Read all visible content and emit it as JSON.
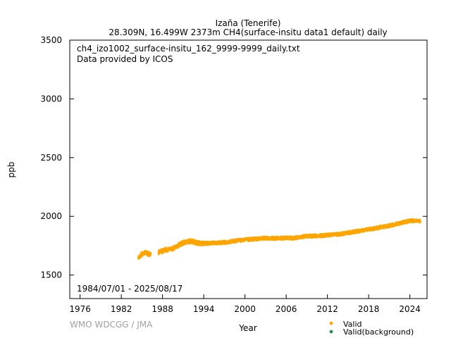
{
  "header": {
    "title": "Izaña (Tenerife)",
    "subtitle": "28.309N, 16.499W 2373m    CH4(surface-insitu data1 default) daily"
  },
  "annotation": {
    "filename": "ch4_izo1002_surface-insitu_162_9999-9999_daily.txt",
    "provider": "Data provided by ICOS",
    "date_range": "1984/07/01 - 2025/08/17"
  },
  "credit": "WMO WDCGG / JMA",
  "colors": {
    "valid": "#ffa500",
    "background": "#2e8b57",
    "axis": "#000000"
  },
  "chart_data": {
    "type": "scatter",
    "title": "Izaña (Tenerife)",
    "xlabel": "Year",
    "ylabel": "ppb",
    "xlim": [
      1974.5,
      2026.5
    ],
    "ylim": [
      1300,
      3500
    ],
    "x_ticks": [
      1976,
      1982,
      1988,
      1994,
      2000,
      2006,
      2012,
      2018,
      2024
    ],
    "y_ticks": [
      1500,
      2000,
      2500,
      3000,
      3500
    ],
    "legend": [
      {
        "name": "Valid",
        "marker": "diamond"
      },
      {
        "name": "Valid(background)",
        "marker": "diamond"
      }
    ],
    "series": [
      {
        "name": "Valid",
        "x": [
          1984.5,
          1985.0,
          1985.5,
          1986.0,
          1987.5,
          1988.0,
          1988.5,
          1989.0,
          1989.5,
          1990.0,
          1990.5,
          1991.0,
          1991.5,
          1992.0,
          1992.5,
          1993.0,
          1993.5,
          1994.0,
          1995.0,
          1996.0,
          1997.0,
          1998.0,
          1999.0,
          2000.0,
          2001.0,
          2002.0,
          2003.0,
          2004.0,
          2005.0,
          2006.0,
          2007.0,
          2008.0,
          2009.0,
          2010.0,
          2011.0,
          2012.0,
          2013.0,
          2014.0,
          2015.0,
          2016.0,
          2017.0,
          2018.0,
          2019.0,
          2020.0,
          2021.0,
          2022.0,
          2023.0,
          2024.0,
          2025.0,
          2025.5
        ],
        "y": [
          1645,
          1680,
          1690,
          1680,
          1695,
          1705,
          1715,
          1720,
          1725,
          1740,
          1760,
          1775,
          1780,
          1790,
          1785,
          1775,
          1770,
          1770,
          1772,
          1775,
          1778,
          1785,
          1795,
          1800,
          1805,
          1810,
          1815,
          1812,
          1815,
          1815,
          1815,
          1825,
          1830,
          1833,
          1835,
          1840,
          1845,
          1850,
          1860,
          1870,
          1878,
          1890,
          1898,
          1910,
          1920,
          1935,
          1950,
          1960,
          1965,
          1958
        ]
      },
      {
        "name": "Valid(background)",
        "x": [],
        "y": []
      }
    ]
  }
}
